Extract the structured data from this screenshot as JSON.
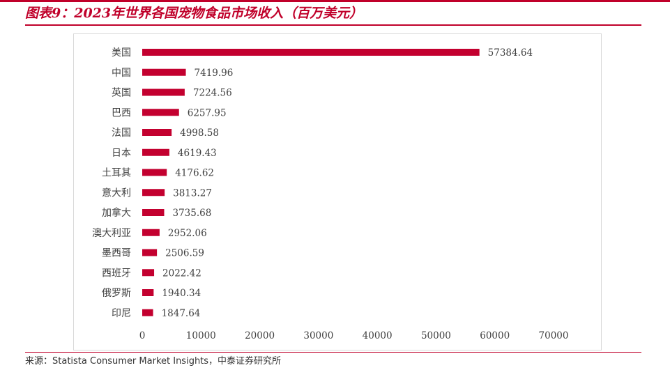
{
  "title": "图表9：2023年世界各国宠物食品市场收入（百万美元）",
  "source": "来源：Statista Consumer Market Insights，中泰证券研究所",
  "colors": {
    "accent": "#c0002a",
    "bar": "#c3002f",
    "text": "#404040"
  },
  "chart_data": {
    "type": "bar",
    "orientation": "horizontal",
    "categories": [
      "美国",
      "中国",
      "英国",
      "巴西",
      "法国",
      "日本",
      "土耳其",
      "意大利",
      "加拿大",
      "澳大利亚",
      "墨西哥",
      "西班牙",
      "俄罗斯",
      "印尼"
    ],
    "values": [
      57384.64,
      7419.96,
      7224.56,
      6257.95,
      4998.58,
      4619.43,
      4176.62,
      3813.27,
      3735.68,
      2952.06,
      2506.59,
      2022.42,
      1940.34,
      1847.64
    ],
    "value_labels": [
      "57384.64",
      "7419.96",
      "7224.56",
      "6257.95",
      "4998.58",
      "4619.43",
      "4176.62",
      "3813.27",
      "3735.68",
      "2952.06",
      "2506.59",
      "2022.42",
      "1940.34",
      "1847.64"
    ],
    "x_ticks": [
      0,
      10000,
      20000,
      30000,
      40000,
      50000,
      60000,
      70000
    ],
    "xlim": [
      0,
      70000
    ],
    "grid": false,
    "legend": "none"
  }
}
